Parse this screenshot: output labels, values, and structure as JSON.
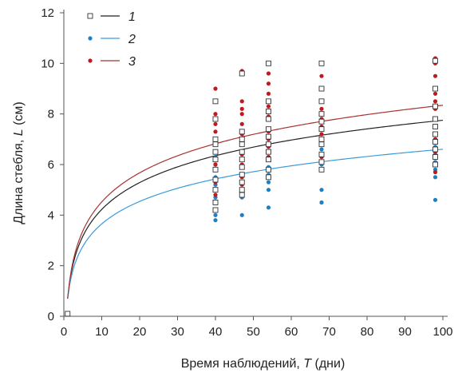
{
  "chart_data": {
    "type": "scatter",
    "xlabel_parts": [
      "Время наблюдений, ",
      "T",
      " (дни)"
    ],
    "ylabel_parts": [
      "Длина стебля, ",
      "L",
      " (см)"
    ],
    "xlim": [
      0,
      100
    ],
    "ylim": [
      0,
      12
    ],
    "x_ticks": [
      "0",
      "10",
      "20",
      "30",
      "40",
      "50",
      "60",
      "70",
      "80",
      "90",
      "100"
    ],
    "y_ticks": [
      "0",
      "2",
      "4",
      "6",
      "8",
      "10",
      "12"
    ],
    "grid": false,
    "legend_position": "top-left",
    "series": [
      {
        "name": "1",
        "marker": "open-square",
        "marker_color": "#333333",
        "line_color": "#222222",
        "fit": {
          "a": 0.7,
          "b": 1.531
        },
        "points": [
          [
            1,
            0.1
          ],
          [
            40,
            4.2
          ],
          [
            40,
            4.5
          ],
          [
            40,
            5.0
          ],
          [
            40,
            5.4
          ],
          [
            40,
            5.8
          ],
          [
            40,
            6.2
          ],
          [
            40,
            6.5
          ],
          [
            40,
            6.8
          ],
          [
            40,
            7.0
          ],
          [
            40,
            7.8
          ],
          [
            40,
            8.5
          ],
          [
            47,
            4.8
          ],
          [
            47,
            5.0
          ],
          [
            47,
            5.3
          ],
          [
            47,
            5.6
          ],
          [
            47,
            5.9
          ],
          [
            47,
            6.2
          ],
          [
            47,
            6.5
          ],
          [
            47,
            6.8
          ],
          [
            47,
            7.0
          ],
          [
            47,
            7.3
          ],
          [
            47,
            9.6
          ],
          [
            54,
            5.5
          ],
          [
            54,
            5.8
          ],
          [
            54,
            6.2
          ],
          [
            54,
            6.5
          ],
          [
            54,
            6.8
          ],
          [
            54,
            7.1
          ],
          [
            54,
            7.4
          ],
          [
            54,
            7.8
          ],
          [
            54,
            8.1
          ],
          [
            54,
            8.5
          ],
          [
            54,
            10.0
          ],
          [
            68,
            5.8
          ],
          [
            68,
            6.1
          ],
          [
            68,
            6.4
          ],
          [
            68,
            6.8
          ],
          [
            68,
            7.0
          ],
          [
            68,
            7.4
          ],
          [
            68,
            7.7
          ],
          [
            68,
            8.0
          ],
          [
            68,
            8.5
          ],
          [
            68,
            9.0
          ],
          [
            68,
            10.0
          ],
          [
            98,
            6.0
          ],
          [
            98,
            6.3
          ],
          [
            98,
            6.6
          ],
          [
            98,
            6.9
          ],
          [
            98,
            7.2
          ],
          [
            98,
            7.5
          ],
          [
            98,
            7.8
          ],
          [
            98,
            8.3
          ],
          [
            98,
            9.0
          ],
          [
            98,
            10.1
          ]
        ]
      },
      {
        "name": "2",
        "marker": "filled-circle",
        "marker_color": "#1f7fc4",
        "line_color": "#3a9ad9",
        "fit": {
          "a": 0.7,
          "b": 1.282
        },
        "points": [
          [
            1,
            0.1
          ],
          [
            40,
            3.8
          ],
          [
            40,
            4.0
          ],
          [
            40,
            4.7
          ],
          [
            40,
            5.0
          ],
          [
            40,
            5.2
          ],
          [
            40,
            5.5
          ],
          [
            40,
            5.8
          ],
          [
            40,
            6.0
          ],
          [
            40,
            6.3
          ],
          [
            47,
            4.0
          ],
          [
            47,
            4.7
          ],
          [
            47,
            5.0
          ],
          [
            47,
            5.3
          ],
          [
            47,
            5.6
          ],
          [
            47,
            5.9
          ],
          [
            47,
            6.2
          ],
          [
            47,
            6.5
          ],
          [
            54,
            4.3
          ],
          [
            54,
            5.0
          ],
          [
            54,
            5.3
          ],
          [
            54,
            5.6
          ],
          [
            54,
            5.9
          ],
          [
            54,
            6.2
          ],
          [
            54,
            6.5
          ],
          [
            54,
            6.8
          ],
          [
            68,
            4.5
          ],
          [
            68,
            5.0
          ],
          [
            68,
            5.8
          ],
          [
            68,
            6.0
          ],
          [
            68,
            6.3
          ],
          [
            68,
            6.6
          ],
          [
            68,
            6.9
          ],
          [
            98,
            4.6
          ],
          [
            98,
            5.5
          ],
          [
            98,
            5.8
          ],
          [
            98,
            6.1
          ],
          [
            98,
            6.4
          ],
          [
            98,
            6.7
          ],
          [
            98,
            7.0
          ]
        ]
      },
      {
        "name": "3",
        "marker": "filled-circle",
        "marker_color": "#c0191e",
        "line_color": "#a83232",
        "fit": {
          "a": 0.7,
          "b": 1.66
        },
        "points": [
          [
            1,
            0.1
          ],
          [
            40,
            4.8
          ],
          [
            40,
            5.3
          ],
          [
            40,
            6.0
          ],
          [
            40,
            6.5
          ],
          [
            40,
            7.0
          ],
          [
            40,
            7.3
          ],
          [
            40,
            7.6
          ],
          [
            40,
            7.8
          ],
          [
            40,
            8.0
          ],
          [
            40,
            8.5
          ],
          [
            40,
            9.0
          ],
          [
            47,
            5.2
          ],
          [
            47,
            5.5
          ],
          [
            47,
            6.0
          ],
          [
            47,
            6.4
          ],
          [
            47,
            6.9
          ],
          [
            47,
            7.2
          ],
          [
            47,
            7.6
          ],
          [
            47,
            8.0
          ],
          [
            47,
            8.2
          ],
          [
            47,
            8.5
          ],
          [
            47,
            9.7
          ],
          [
            54,
            5.8
          ],
          [
            54,
            6.3
          ],
          [
            54,
            6.7
          ],
          [
            54,
            7.0
          ],
          [
            54,
            7.3
          ],
          [
            54,
            7.9
          ],
          [
            54,
            8.3
          ],
          [
            54,
            8.8
          ],
          [
            54,
            9.2
          ],
          [
            54,
            9.6
          ],
          [
            54,
            10.0
          ],
          [
            68,
            5.8
          ],
          [
            68,
            6.3
          ],
          [
            68,
            6.8
          ],
          [
            68,
            7.2
          ],
          [
            68,
            7.5
          ],
          [
            68,
            7.8
          ],
          [
            68,
            8.2
          ],
          [
            68,
            8.5
          ],
          [
            68,
            9.0
          ],
          [
            68,
            9.5
          ],
          [
            68,
            10.0
          ],
          [
            98,
            5.7
          ],
          [
            98,
            6.0
          ],
          [
            98,
            6.5
          ],
          [
            98,
            7.0
          ],
          [
            98,
            7.5
          ],
          [
            98,
            7.8
          ],
          [
            98,
            8.2
          ],
          [
            98,
            8.5
          ],
          [
            98,
            8.8
          ],
          [
            98,
            9.5
          ],
          [
            98,
            10.0
          ],
          [
            98,
            10.2
          ]
        ]
      }
    ]
  }
}
